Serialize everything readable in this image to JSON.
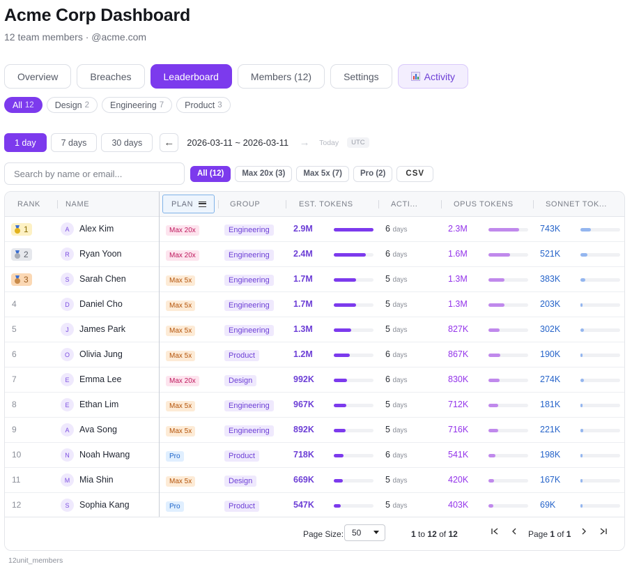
{
  "header": {
    "title": "Acme Corp Dashboard",
    "subtitle": "12 team members · @acme.com"
  },
  "tabs": [
    {
      "label": "Overview"
    },
    {
      "label": "Breaches"
    },
    {
      "label": "Leaderboard",
      "active": true
    },
    {
      "label": "Members (12)"
    },
    {
      "label": "Settings"
    },
    {
      "label": "Activity",
      "icon": "bar-chart-icon"
    }
  ],
  "group_filters": [
    {
      "label": "All",
      "count": "12",
      "active": true
    },
    {
      "label": "Design",
      "count": "2"
    },
    {
      "label": "Engineering",
      "count": "7"
    },
    {
      "label": "Product",
      "count": "3"
    }
  ],
  "range": {
    "buttons": [
      {
        "label": "1 day",
        "active": true
      },
      {
        "label": "7 days"
      },
      {
        "label": "30 days"
      }
    ],
    "prev": "←",
    "dates": "2026-03-11 ~ 2026-03-11",
    "next": "→",
    "today": "Today",
    "tz": "UTC"
  },
  "search": {
    "placeholder": "Search by name or email..."
  },
  "plan_filters": [
    {
      "label": "All (12)",
      "active": true
    },
    {
      "label": "Max 20x (3)"
    },
    {
      "label": "Max 5x (7)"
    },
    {
      "label": "Pro (2)"
    }
  ],
  "csv_label": "CSV",
  "table": {
    "headers": {
      "rank": "RANK",
      "name": "NAME",
      "plan": "PLAN",
      "group": "GROUP",
      "est": "EST. TOKENS",
      "active": "ACTI...",
      "opus": "OPUS TOKENS",
      "sonnet": "SONNET TOK..."
    },
    "days_unit": "days",
    "rows": [
      {
        "rank": "1",
        "medal": "gold",
        "initial": "A",
        "name": "Alex Kim",
        "plan": "Max 20x",
        "plan_kind": "max20",
        "group": "Engineering",
        "est": "2.9M",
        "est_frac": 1.0,
        "active": "6",
        "opus": "2.3M",
        "opus_frac": 0.78,
        "sonnet": "743K",
        "sonnet_frac": 0.26
      },
      {
        "rank": "2",
        "medal": "silver",
        "initial": "R",
        "name": "Ryan Yoon",
        "plan": "Max 20x",
        "plan_kind": "max20",
        "group": "Engineering",
        "est": "2.4M",
        "est_frac": 0.81,
        "active": "6",
        "opus": "1.6M",
        "opus_frac": 0.55,
        "sonnet": "521K",
        "sonnet_frac": 0.18
      },
      {
        "rank": "3",
        "medal": "bronze",
        "initial": "S",
        "name": "Sarah Chen",
        "plan": "Max 5x",
        "plan_kind": "max5",
        "group": "Engineering",
        "est": "1.7M",
        "est_frac": 0.57,
        "active": "5",
        "opus": "1.3M",
        "opus_frac": 0.41,
        "sonnet": "383K",
        "sonnet_frac": 0.12
      },
      {
        "rank": "4",
        "initial": "D",
        "name": "Daniel Cho",
        "plan": "Max 5x",
        "plan_kind": "max5",
        "group": "Engineering",
        "est": "1.7M",
        "est_frac": 0.56,
        "active": "5",
        "opus": "1.3M",
        "opus_frac": 0.41,
        "sonnet": "203K",
        "sonnet_frac": 0.06
      },
      {
        "rank": "5",
        "initial": "J",
        "name": "James Park",
        "plan": "Max 5x",
        "plan_kind": "max5",
        "group": "Engineering",
        "est": "1.3M",
        "est_frac": 0.44,
        "active": "5",
        "opus": "827K",
        "opus_frac": 0.28,
        "sonnet": "302K",
        "sonnet_frac": 0.09
      },
      {
        "rank": "6",
        "initial": "O",
        "name": "Olivia Jung",
        "plan": "Max 5x",
        "plan_kind": "max5",
        "group": "Product",
        "est": "1.2M",
        "est_frac": 0.4,
        "active": "6",
        "opus": "867K",
        "opus_frac": 0.29,
        "sonnet": "190K",
        "sonnet_frac": 0.06
      },
      {
        "rank": "7",
        "initial": "E",
        "name": "Emma Lee",
        "plan": "Max 20x",
        "plan_kind": "max20",
        "group": "Design",
        "est": "992K",
        "est_frac": 0.33,
        "active": "6",
        "opus": "830K",
        "opus_frac": 0.28,
        "sonnet": "274K",
        "sonnet_frac": 0.08
      },
      {
        "rank": "8",
        "initial": "E",
        "name": "Ethan Lim",
        "plan": "Max 5x",
        "plan_kind": "max5",
        "group": "Engineering",
        "est": "967K",
        "est_frac": 0.32,
        "active": "5",
        "opus": "712K",
        "opus_frac": 0.24,
        "sonnet": "181K",
        "sonnet_frac": 0.05
      },
      {
        "rank": "9",
        "initial": "A",
        "name": "Ava Song",
        "plan": "Max 5x",
        "plan_kind": "max5",
        "group": "Engineering",
        "est": "892K",
        "est_frac": 0.3,
        "active": "5",
        "opus": "716K",
        "opus_frac": 0.24,
        "sonnet": "221K",
        "sonnet_frac": 0.07
      },
      {
        "rank": "10",
        "initial": "N",
        "name": "Noah Hwang",
        "plan": "Pro",
        "plan_kind": "pro",
        "group": "Product",
        "est": "718K",
        "est_frac": 0.24,
        "active": "6",
        "opus": "541K",
        "opus_frac": 0.18,
        "sonnet": "198K",
        "sonnet_frac": 0.06
      },
      {
        "rank": "11",
        "initial": "M",
        "name": "Mia Shin",
        "plan": "Max 5x",
        "plan_kind": "max5",
        "group": "Design",
        "est": "669K",
        "est_frac": 0.22,
        "active": "5",
        "opus": "420K",
        "opus_frac": 0.14,
        "sonnet": "167K",
        "sonnet_frac": 0.05
      },
      {
        "rank": "12",
        "initial": "S",
        "name": "Sophia Kang",
        "plan": "Pro",
        "plan_kind": "pro",
        "group": "Product",
        "est": "547K",
        "est_frac": 0.18,
        "active": "5",
        "opus": "403K",
        "opus_frac": 0.13,
        "sonnet": "69K",
        "sonnet_frac": 0.02
      }
    ]
  },
  "pager": {
    "size_label": "Page Size:",
    "size_value": "50",
    "range_from": "1",
    "range_to_word": "to",
    "range_to": "12",
    "range_of_word": "of",
    "range_total": "12",
    "page_word": "Page",
    "page": "1",
    "of_word": "of",
    "pages": "1",
    "first": "|◀",
    "prev": "‹",
    "next": "›",
    "last": "▶|"
  },
  "footer": "12unit_members"
}
